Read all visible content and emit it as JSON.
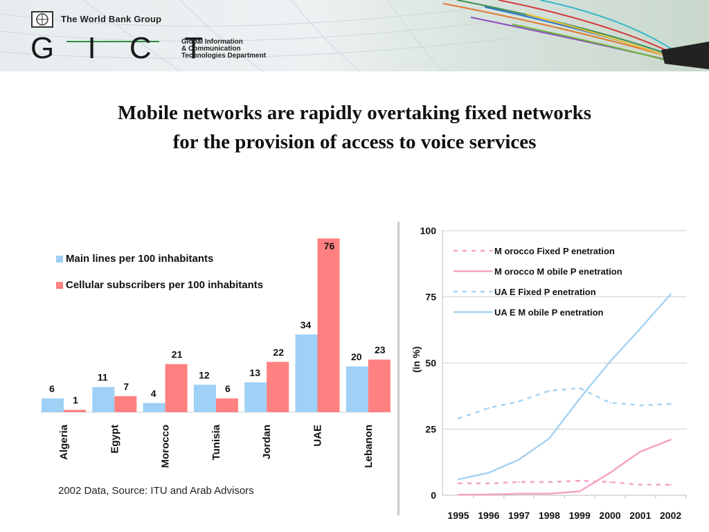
{
  "header": {
    "org": "The World Bank Group",
    "logo": "G I C T",
    "dept_lines": [
      "Global Information",
      "& Communication",
      "Technologies Department"
    ]
  },
  "title_lines": [
    "Mobile networks are rapidly overtaking fixed networks",
    "for the provision of access to voice services"
  ],
  "source": "2002 Data, Source: ITU and Arab Advisors",
  "colors": {
    "main_lines": "#9fd0f5",
    "cellular": "#ff8080",
    "morocco": "#f3a3c7",
    "uae": "#a6d3f3"
  },
  "chart_data": [
    {
      "type": "bar",
      "categories": [
        "Algeria",
        "Egypt",
        "Morocco",
        "Tunisia",
        "Jordan",
        "UAE",
        "Lebanon"
      ],
      "series": [
        {
          "name": "Main lines per 100 inhabitants",
          "values": [
            6,
            11,
            4,
            12,
            13,
            34,
            20
          ],
          "color": "#9fd0f5"
        },
        {
          "name": "Cellular subscribers per 100 inhabitants",
          "values": [
            1,
            7,
            21,
            6,
            22,
            76,
            23
          ],
          "color": "#ff8080"
        }
      ],
      "ylim": [
        0,
        76
      ],
      "legend": "top-left",
      "grid": false
    },
    {
      "type": "line",
      "x": [
        1995,
        1996,
        1997,
        1998,
        1999,
        2000,
        2001,
        2002
      ],
      "ylabel": "(in %)",
      "ylim": [
        0,
        100
      ],
      "yticks": [
        0,
        25,
        50,
        75,
        100
      ],
      "grid": true,
      "legend": "top-left",
      "series": [
        {
          "name": "M orocco Fixed P enetration",
          "values": [
            4.5,
            4.5,
            5,
            5,
            5.5,
            5,
            4,
            4
          ],
          "color": "#f3a3c7",
          "dash": true
        },
        {
          "name": "M orocco M obile P enetration",
          "values": [
            0.2,
            0.3,
            0.6,
            0.6,
            1.5,
            8.5,
            16.5,
            21
          ],
          "color": "#f3a3c7",
          "dash": false
        },
        {
          "name": "UA E Fixed P enetration",
          "values": [
            29,
            33,
            35.5,
            39.5,
            40.5,
            35,
            34,
            34.5
          ],
          "color": "#a6d3f3",
          "dash": true
        },
        {
          "name": "UA E M obile P enetration",
          "values": [
            6,
            8.5,
            13.5,
            21.5,
            36.5,
            50.5,
            63,
            76
          ],
          "color": "#a6d3f3",
          "dash": false
        }
      ]
    }
  ]
}
